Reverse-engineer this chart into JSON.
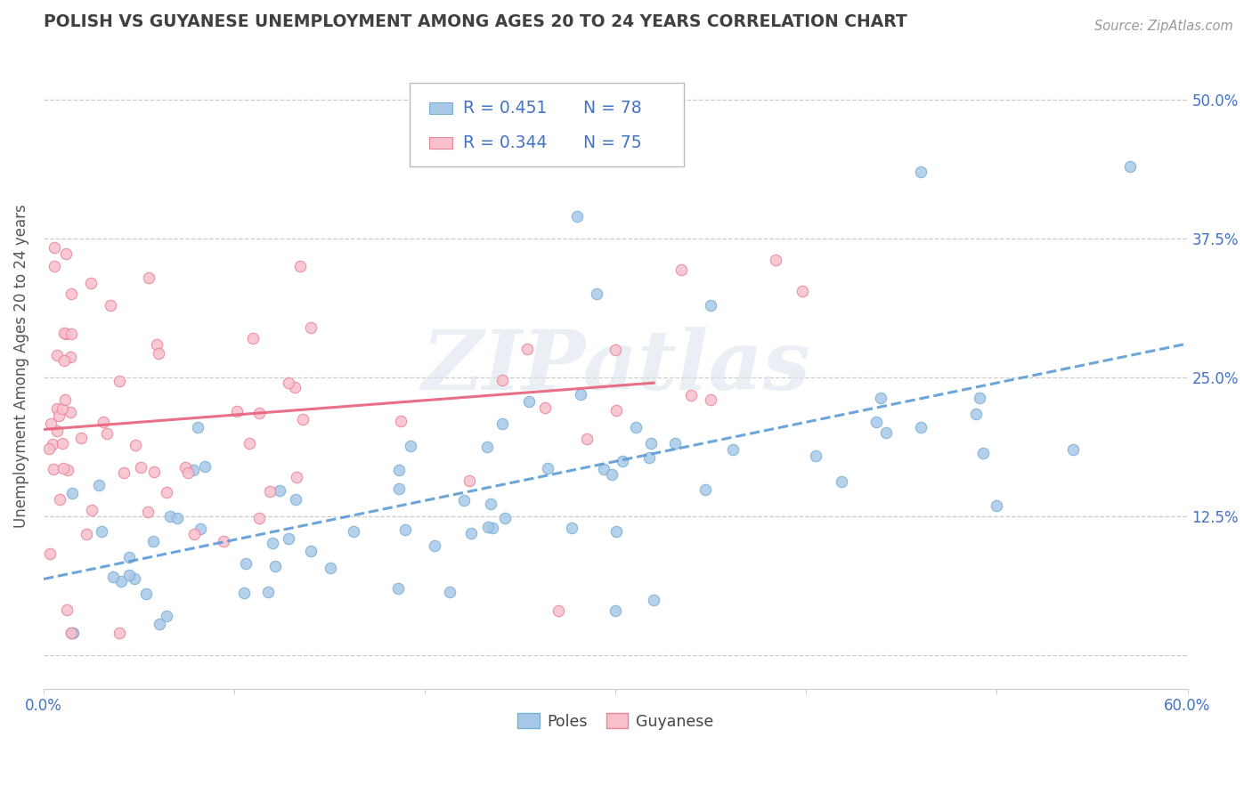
{
  "title": "POLISH VS GUYANESE UNEMPLOYMENT AMONG AGES 20 TO 24 YEARS CORRELATION CHART",
  "source": "Source: ZipAtlas.com",
  "ylabel": "Unemployment Among Ages 20 to 24 years",
  "xlim": [
    0.0,
    0.6
  ],
  "ylim": [
    -0.03,
    0.55
  ],
  "xticks": [
    0.0,
    0.1,
    0.2,
    0.3,
    0.4,
    0.5,
    0.6
  ],
  "xticklabels": [
    "0.0%",
    "",
    "",
    "",
    "",
    "",
    "60.0%"
  ],
  "yticks": [
    0.0,
    0.125,
    0.25,
    0.375,
    0.5
  ],
  "yticklabels": [
    "",
    "12.5%",
    "25.0%",
    "37.5%",
    "50.0%"
  ],
  "poles_R": 0.451,
  "poles_N": 78,
  "guyanese_R": 0.344,
  "guyanese_N": 75,
  "poles_color": "#a8c8e8",
  "poles_edge_color": "#7bafd4",
  "guyanese_color": "#f9c0cc",
  "guyanese_edge_color": "#e8849a",
  "poles_line_color": "#5b9bd5",
  "guyanese_line_color": "#e8607a",
  "legend_R_color": "#4472c4",
  "watermark_text": "ZIPatlas",
  "background_color": "#ffffff",
  "grid_color": "#cccccc",
  "title_color": "#404040",
  "axis_color": "#4472c4",
  "source_color": "#999999"
}
